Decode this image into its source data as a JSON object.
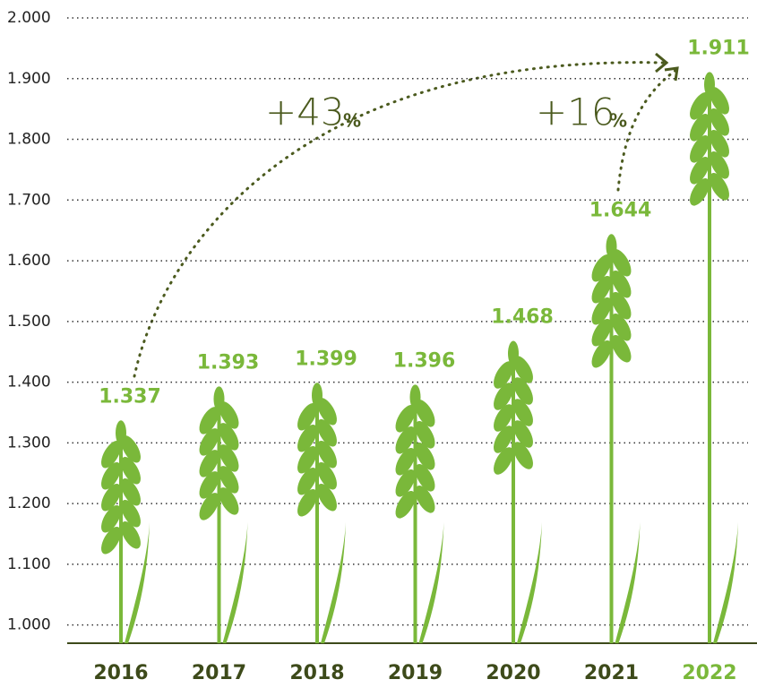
{
  "chart_data": {
    "type": "bar",
    "categories": [
      "2016",
      "2017",
      "2018",
      "2019",
      "2020",
      "2021",
      "2022"
    ],
    "values": [
      1337,
      1393,
      1399,
      1396,
      1468,
      1644,
      1911
    ],
    "value_labels": [
      "1.337",
      "1.393",
      "1.399",
      "1.396",
      "1.468",
      "1.644",
      "1.911"
    ],
    "color": "#7ab83a",
    "highlight": "2022",
    "ylim": [
      970,
      2000
    ],
    "yticks": [
      {
        "value": 1000,
        "label": "1.000"
      },
      {
        "value": 1100,
        "label": "1.100"
      },
      {
        "value": 1200,
        "label": "1.200"
      },
      {
        "value": 1300,
        "label": "1.300"
      },
      {
        "value": 1400,
        "label": "1.400"
      },
      {
        "value": 1500,
        "label": "1.500"
      },
      {
        "value": 1600,
        "label": "1.600"
      },
      {
        "value": 1700,
        "label": "1.700"
      },
      {
        "value": 1800,
        "label": "1.800"
      },
      {
        "value": 1900,
        "label": "1.900"
      },
      {
        "value": 2000,
        "label": "2.000"
      }
    ],
    "grid": true,
    "annotations": [
      {
        "text": "+43",
        "suffix": "%"
      },
      {
        "text": "+16",
        "suffix": "%"
      }
    ]
  }
}
